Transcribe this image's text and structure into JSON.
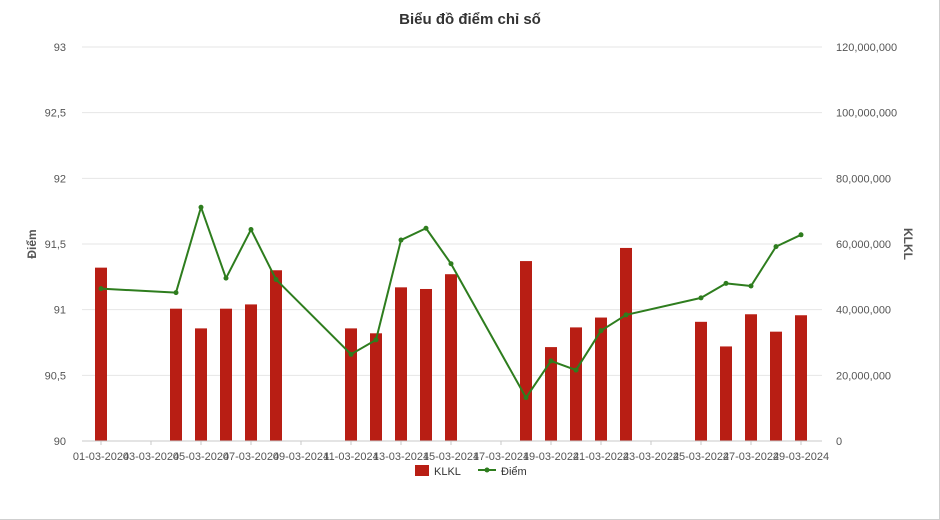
{
  "chart_data": {
    "type": "bar+line",
    "title": "Biểu đồ điểm chỉ số",
    "y_left_label": "Điểm",
    "y_right_label": "KLKL",
    "y_left_ticks": [
      "93",
      "92,5",
      "92",
      "91,5",
      "91",
      "90,5",
      "90"
    ],
    "y_right_ticks": [
      "120,000,000",
      "100,000,000",
      "80,000,000",
      "60,000,000",
      "40,000,000",
      "20,000,000",
      "0"
    ],
    "y_left_range": [
      90,
      93
    ],
    "y_right_range": [
      0,
      120000000
    ],
    "x_tick_labels": [
      "01-03-2024",
      "03-03-2024",
      "05-03-2024",
      "07-03-2024",
      "09-03-2024",
      "11-03-2024",
      "13-03-2024",
      "15-03-2024",
      "17-03-2024",
      "19-03-2024",
      "21-03-2024",
      "23-03-2024",
      "25-03-2024",
      "27-03-2024",
      "29-03-2024"
    ],
    "x_range": [
      1,
      29
    ],
    "grid": "horizontal",
    "legend_placement": "bottom",
    "series": [
      {
        "name": "KLKL",
        "type": "bar",
        "axis": "right",
        "color": "#b81e14",
        "points": [
          {
            "day": 1,
            "value": 52800000
          },
          {
            "day": 4,
            "value": 40300000
          },
          {
            "day": 5,
            "value": 34300000
          },
          {
            "day": 6,
            "value": 40300000
          },
          {
            "day": 7,
            "value": 41600000
          },
          {
            "day": 8,
            "value": 52000000
          },
          {
            "day": 11,
            "value": 34300000
          },
          {
            "day": 12,
            "value": 32800000
          },
          {
            "day": 13,
            "value": 46800000
          },
          {
            "day": 14,
            "value": 46300000
          },
          {
            "day": 15,
            "value": 50800000
          },
          {
            "day": 18,
            "value": 54800000
          },
          {
            "day": 19,
            "value": 28600000
          },
          {
            "day": 20,
            "value": 34600000
          },
          {
            "day": 21,
            "value": 37600000
          },
          {
            "day": 22,
            "value": 58800000
          },
          {
            "day": 25,
            "value": 36300000
          },
          {
            "day": 26,
            "value": 28800000
          },
          {
            "day": 27,
            "value": 38600000
          },
          {
            "day": 28,
            "value": 33300000
          },
          {
            "day": 29,
            "value": 38300000
          }
        ]
      },
      {
        "name": "Điểm",
        "type": "line",
        "axis": "left",
        "color": "#2e7d1e",
        "points": [
          {
            "day": 1,
            "value": 91.16
          },
          {
            "day": 4,
            "value": 91.13
          },
          {
            "day": 5,
            "value": 91.78
          },
          {
            "day": 6,
            "value": 91.24
          },
          {
            "day": 7,
            "value": 91.61
          },
          {
            "day": 8,
            "value": 91.23
          },
          {
            "day": 11,
            "value": 90.66
          },
          {
            "day": 12,
            "value": 90.77
          },
          {
            "day": 13,
            "value": 91.53
          },
          {
            "day": 14,
            "value": 91.62
          },
          {
            "day": 15,
            "value": 91.35
          },
          {
            "day": 18,
            "value": 90.33
          },
          {
            "day": 19,
            "value": 90.61
          },
          {
            "day": 20,
            "value": 90.54
          },
          {
            "day": 21,
            "value": 90.84
          },
          {
            "day": 22,
            "value": 90.96
          },
          {
            "day": 25,
            "value": 91.09
          },
          {
            "day": 26,
            "value": 91.2
          },
          {
            "day": 27,
            "value": 91.18
          },
          {
            "day": 28,
            "value": 91.48
          },
          {
            "day": 29,
            "value": 91.57
          }
        ]
      }
    ]
  }
}
